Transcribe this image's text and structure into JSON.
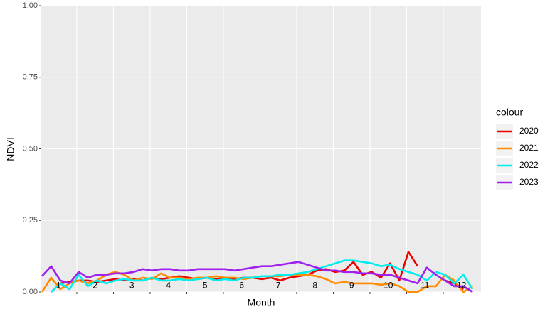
{
  "chart_data": {
    "type": "line",
    "x_label": "Month",
    "y_label": "NDVI",
    "legend_title": "colour",
    "legend_position": "right",
    "xlim": [
      0.53,
      12.53
    ],
    "xticks": [
      1.5,
      2.5,
      3.5,
      4.5,
      5.5,
      6.5,
      7.5,
      8.5,
      9.5,
      10.5,
      11.5
    ],
    "ylim": [
      0,
      1
    ],
    "yticks": [
      {
        "value": 0,
        "label": "0.00"
      },
      {
        "value": 0.25,
        "label": "0.25"
      },
      {
        "value": 0.5,
        "label": "0.50"
      },
      {
        "value": 0.75,
        "label": "0.75"
      },
      {
        "value": 1,
        "label": "1.00"
      }
    ],
    "grid": true,
    "annotations": [
      {
        "label": "1",
        "x": 1,
        "y": 0.017
      },
      {
        "label": "2",
        "x": 2,
        "y": 0.017
      },
      {
        "label": "3",
        "x": 3,
        "y": 0.017
      },
      {
        "label": "4",
        "x": 4,
        "y": 0.017
      },
      {
        "label": "5",
        "x": 5,
        "y": 0.017
      },
      {
        "label": "6",
        "x": 6,
        "y": 0.017
      },
      {
        "label": "7",
        "x": 7,
        "y": 0.017
      },
      {
        "label": "8",
        "x": 8,
        "y": 0.017
      },
      {
        "label": "9",
        "x": 9,
        "y": 0.017
      },
      {
        "label": "10",
        "x": 10,
        "y": 0.017
      },
      {
        "label": "11",
        "x": 11,
        "y": 0.017
      },
      {
        "label": "12",
        "x": 12,
        "y": 0.017
      }
    ],
    "x": [
      0.55,
      0.8,
      1.05,
      1.3,
      1.55,
      1.8,
      2.05,
      2.3,
      2.55,
      2.8,
      3.05,
      3.3,
      3.55,
      3.8,
      4.05,
      4.3,
      4.55,
      4.8,
      5.05,
      5.3,
      5.55,
      5.8,
      6.05,
      6.3,
      6.55,
      6.8,
      7.05,
      7.3,
      7.55,
      7.8,
      8.05,
      8.3,
      8.55,
      8.8,
      9.05,
      9.3,
      9.55,
      9.8,
      10.05,
      10.3,
      10.55,
      10.8,
      11.05,
      11.3,
      11.55,
      11.8,
      12.05,
      12.3
    ],
    "series": [
      {
        "name": "2020",
        "color": "#ee0000",
        "values": [
          null,
          null,
          0.03,
          0.035,
          0.04,
          0.04,
          0.035,
          0.04,
          0.045,
          0.04,
          0.045,
          0.04,
          0.05,
          0.045,
          0.05,
          0.055,
          0.05,
          0.045,
          0.05,
          0.045,
          0.05,
          0.045,
          0.05,
          0.05,
          0.045,
          0.05,
          0.04,
          0.05,
          0.055,
          0.06,
          0.075,
          0.08,
          0.07,
          0.075,
          0.105,
          0.06,
          0.07,
          0.05,
          0.1,
          0.04,
          0.14,
          0.09,
          null,
          null,
          0.04,
          0.03,
          0.01,
          null
        ]
      },
      {
        "name": "2021",
        "color": "#ff8c00",
        "values": [
          0.0,
          0.05,
          0.01,
          0.03,
          0.04,
          0.03,
          0.04,
          0.06,
          0.07,
          0.06,
          0.04,
          0.05,
          0.045,
          0.065,
          0.05,
          0.05,
          0.045,
          0.05,
          0.05,
          0.055,
          0.05,
          0.05,
          0.045,
          0.05,
          0.055,
          0.055,
          0.055,
          0.06,
          0.06,
          0.06,
          0.055,
          0.045,
          0.03,
          0.035,
          0.03,
          0.03,
          0.03,
          0.025,
          0.03,
          0.02,
          0.0,
          0.0,
          0.02,
          0.02,
          0.06,
          0.04,
          0.0,
          0.02
        ]
      },
      {
        "name": "2022",
        "color": "#00eeee",
        "values": [
          null,
          0.0,
          0.03,
          0.01,
          0.06,
          0.02,
          0.04,
          0.03,
          0.04,
          0.045,
          0.04,
          0.04,
          0.05,
          0.04,
          0.04,
          0.045,
          0.04,
          0.045,
          0.05,
          0.04,
          0.045,
          0.04,
          0.05,
          0.05,
          0.055,
          0.055,
          0.06,
          0.06,
          0.065,
          0.07,
          0.08,
          0.09,
          0.1,
          0.11,
          0.11,
          0.105,
          0.1,
          0.09,
          0.095,
          0.08,
          0.07,
          0.06,
          0.04,
          0.07,
          0.06,
          0.03,
          0.06,
          0.01
        ]
      },
      {
        "name": "2023",
        "color": "#a020f0",
        "values": [
          0.055,
          0.09,
          0.04,
          0.03,
          0.07,
          0.05,
          0.06,
          0.06,
          0.065,
          0.065,
          0.07,
          0.08,
          0.075,
          0.08,
          0.08,
          0.075,
          0.075,
          0.08,
          0.08,
          0.08,
          0.08,
          0.075,
          0.08,
          0.085,
          0.09,
          0.09,
          0.095,
          0.1,
          0.105,
          0.095,
          0.085,
          0.075,
          0.075,
          0.07,
          0.07,
          0.065,
          0.065,
          0.06,
          0.06,
          0.05,
          0.04,
          0.03,
          0.085,
          0.06,
          0.04,
          0.02,
          0.02,
          0.0
        ]
      }
    ]
  }
}
